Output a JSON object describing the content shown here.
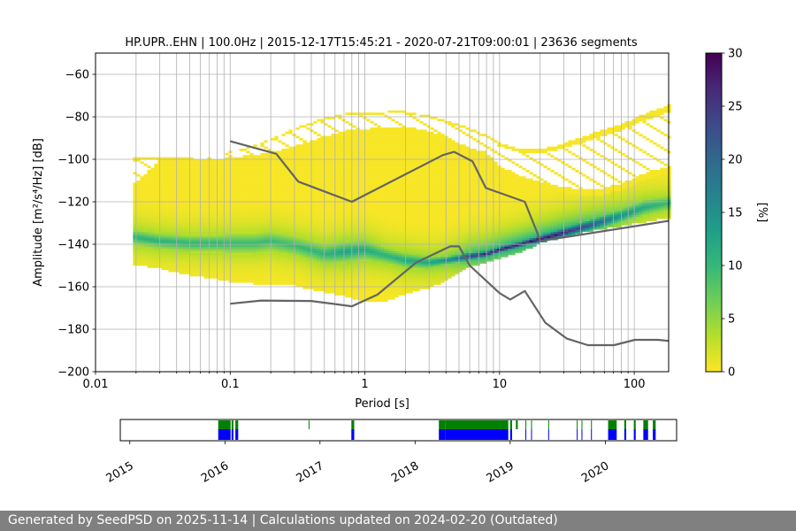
{
  "chart_data": {
    "type": "heatmap",
    "title": "HP.UPR..EHN | 100.0Hz | 2015-12-17T15:45:21 - 2020-07-21T09:00:01 | 23636 segments",
    "xlabel": "Period [s]",
    "ylabel": "Amplitude [m²/s⁴/Hz] [dB]",
    "x_scale": "log",
    "xlim": [
      0.01,
      180
    ],
    "ylim": [
      -200,
      -50
    ],
    "x_ticks": [
      0.01,
      0.1,
      1,
      10,
      100
    ],
    "x_tick_labels": [
      "0.01",
      "0.1",
      "1",
      "10",
      "100"
    ],
    "y_ticks": [
      -60,
      -80,
      -100,
      -120,
      -140,
      -160,
      -180,
      -200
    ],
    "y_tick_labels": [
      "−60",
      "−80",
      "−100",
      "−120",
      "−140",
      "−160",
      "−180",
      "−200"
    ],
    "grid": true,
    "colorbar": {
      "label": "[%]",
      "range": [
        0,
        30
      ],
      "ticks": [
        0,
        5,
        10,
        15,
        20,
        25,
        30
      ],
      "tick_labels": [
        "0",
        "5",
        "10",
        "15",
        "20",
        "25",
        "30"
      ],
      "colormap": [
        "#fde725",
        "#b5de2b",
        "#6ece58",
        "#35b779",
        "#1f9e89",
        "#26828e",
        "#31688e",
        "#3e4989",
        "#482878",
        "#440154"
      ]
    },
    "psd_band": {
      "periods": [
        0.019,
        0.03,
        0.05,
        0.08,
        0.1,
        0.15,
        0.2,
        0.3,
        0.5,
        0.7,
        1,
        1.5,
        2,
        3,
        4,
        5,
        6,
        8,
        10,
        15,
        20,
        30,
        50,
        80,
        120,
        180
      ],
      "mode_db": [
        -137,
        -139,
        -140,
        -140,
        -140,
        -140,
        -139,
        -141,
        -145,
        -144,
        -143,
        -146,
        -148,
        -149,
        -148,
        -147,
        -146,
        -145,
        -143,
        -140,
        -138,
        -135,
        -131,
        -127,
        -123,
        -121
      ],
      "core_half": [
        4,
        4,
        4,
        4,
        5,
        5,
        5,
        5,
        5,
        5,
        5,
        4,
        4,
        3,
        2,
        2,
        2,
        1.5,
        1.5,
        1.5,
        2,
        2.5,
        3,
        3.5,
        4,
        4
      ],
      "lower_db": [
        -150,
        -152,
        -155,
        -157,
        -158,
        -159,
        -159,
        -160,
        -163,
        -165,
        -168,
        -167,
        -164,
        -161,
        -158,
        -154,
        -151,
        -149,
        -147,
        -144,
        -140,
        -137,
        -134,
        -132,
        -130,
        -128
      ],
      "upper_db": [
        -114,
        -101,
        -101,
        -101,
        -100,
        -99,
        -98,
        -95,
        -91,
        -88,
        -87,
        -86,
        -86,
        -88,
        -91,
        -94,
        -96,
        -98,
        -105,
        -110,
        -113,
        -116,
        -118,
        -115,
        -110,
        -107
      ],
      "outer_upper_db": [
        -100,
        -100,
        -100,
        -99,
        -97,
        -94,
        -91,
        -86,
        -81,
        -79,
        -79,
        -78,
        -78,
        -80,
        -82,
        -84,
        -86,
        -89,
        -93,
        -96,
        -96,
        -93,
        -88,
        -84,
        -79,
        -75
      ],
      "peak_percent": [
        11,
        11,
        11,
        11,
        10,
        10,
        10,
        10,
        11,
        13,
        12,
        11,
        12,
        13,
        16,
        20,
        25,
        29,
        30,
        30,
        30,
        28,
        22,
        15,
        12,
        10
      ]
    },
    "reference_curves": [
      {
        "name": "upper",
        "color": "#646464",
        "periods": [
          0.1,
          0.22,
          0.32,
          0.8,
          3.8,
          4.6,
          6.3,
          7.9,
          15.4,
          20
        ],
        "db": [
          -91.5,
          -97.4,
          -110.5,
          -120,
          -98,
          -96.5,
          -101,
          -113.5,
          -120,
          -138
        ]
      },
      {
        "name": "lower",
        "color": "#646464",
        "periods": [
          0.1,
          0.17,
          0.4,
          0.8,
          1.24,
          2.4,
          4.3,
          5.0,
          6.0,
          10,
          12,
          15.4,
          21.9,
          31.6,
          45.2,
          70.8,
          101,
          150,
          180
        ],
        "db": [
          -168,
          -166.5,
          -166.7,
          -169.2,
          -163.7,
          -148.6,
          -141,
          -141,
          -150,
          -163,
          -166,
          -162,
          -177,
          -184.4,
          -187.5,
          -187.5,
          -185,
          -185,
          -185.5
        ]
      },
      {
        "name": "noise-model",
        "color": "#646464",
        "periods": [
          20,
          180
        ],
        "db": [
          -138.5,
          -129
        ]
      }
    ],
    "availability": {
      "years": [
        "2015",
        "2016",
        "2017",
        "2018",
        "2019",
        "2020"
      ],
      "green_color": "#008000",
      "blue_color": "#0000ff",
      "segments": [
        {
          "start": 2015.93,
          "end": 2016.06,
          "green": true,
          "blue": true
        },
        {
          "start": 2016.07,
          "end": 2016.09,
          "green": true,
          "blue": true
        },
        {
          "start": 2016.11,
          "end": 2016.14,
          "green": true,
          "blue": true
        },
        {
          "start": 2016.88,
          "end": 2016.885,
          "green": true,
          "blue": false
        },
        {
          "start": 2017.33,
          "end": 2017.36,
          "green": true,
          "blue": true
        },
        {
          "start": 2018.25,
          "end": 2018.32,
          "green": true,
          "blue": true
        },
        {
          "start": 2018.32,
          "end": 2018.98,
          "green": true,
          "blue": true
        },
        {
          "start": 2019.0,
          "end": 2019.02,
          "green": true,
          "blue": true
        },
        {
          "start": 2019.06,
          "end": 2019.08,
          "green": true,
          "blue": false
        },
        {
          "start": 2019.16,
          "end": 2019.165,
          "green": true,
          "blue": true
        },
        {
          "start": 2019.22,
          "end": 2019.225,
          "green": true,
          "blue": true
        },
        {
          "start": 2019.4,
          "end": 2019.405,
          "green": true,
          "blue": true
        },
        {
          "start": 2019.7,
          "end": 2019.705,
          "green": true,
          "blue": true
        },
        {
          "start": 2019.75,
          "end": 2019.755,
          "green": true,
          "blue": true
        },
        {
          "start": 2019.85,
          "end": 2019.855,
          "green": true,
          "blue": true
        },
        {
          "start": 2020.03,
          "end": 2020.12,
          "green": true,
          "blue": true
        },
        {
          "start": 2020.2,
          "end": 2020.22,
          "green": true,
          "blue": true
        },
        {
          "start": 2020.3,
          "end": 2020.32,
          "green": true,
          "blue": true
        },
        {
          "start": 2020.4,
          "end": 2020.45,
          "green": true,
          "blue": true
        },
        {
          "start": 2020.5,
          "end": 2020.53,
          "green": true,
          "blue": true
        }
      ]
    }
  },
  "footer": {
    "text": "Generated by SeedPSD on 2025-11-14 | Calculations updated on 2024-02-20 (Outdated)"
  }
}
